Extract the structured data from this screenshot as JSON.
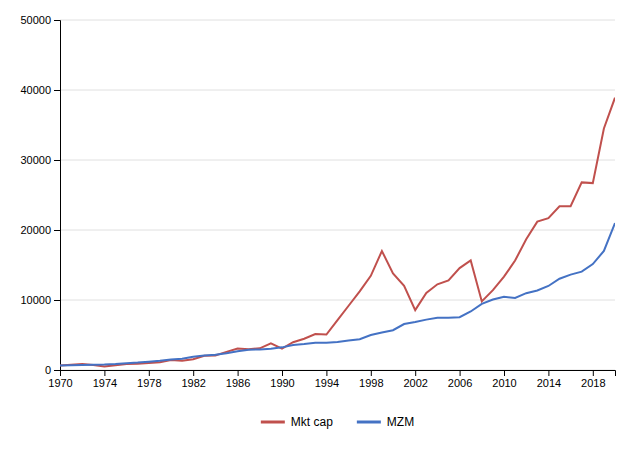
{
  "chart_data": {
    "type": "line",
    "x": [
      1970,
      1971,
      1972,
      1973,
      1974,
      1975,
      1976,
      1977,
      1978,
      1979,
      1980,
      1981,
      1982,
      1983,
      1984,
      1985,
      1986,
      1987,
      1988,
      1989,
      1990,
      1991,
      1992,
      1993,
      1994,
      1995,
      1996,
      1997,
      1998,
      1999,
      2000,
      2001,
      2002,
      2003,
      2004,
      2005,
      2006,
      2007,
      2008,
      2009,
      2010,
      2011,
      2012,
      2013,
      2014,
      2015,
      2016,
      2017,
      2018,
      2019,
      2020
    ],
    "series": [
      {
        "name": "Mkt cap",
        "color": "#c0504d",
        "values": [
          636,
          741,
          871,
          722,
          511,
          685,
          858,
          906,
          1001,
          1122,
          1436,
          1331,
          1546,
          2024,
          2085,
          2586,
          3073,
          2977,
          3098,
          3815,
          3059,
          3973,
          4468,
          5136,
          5058,
          7138,
          9178,
          11234,
          13451,
          17001,
          13810,
          12020,
          8550,
          11018,
          12244,
          12803,
          14562,
          15650,
          9800,
          11400,
          13330,
          15640,
          18668,
          21200,
          21700,
          23400,
          23400,
          26800,
          26700,
          34500,
          38900
        ]
      },
      {
        "name": "MZM",
        "color": "#4472c4",
        "values": [
          626,
          680,
          726,
          762,
          770,
          849,
          980,
          1061,
          1190,
          1319,
          1503,
          1619,
          1879,
          2081,
          2176,
          2384,
          2691,
          2892,
          2940,
          3037,
          3234,
          3555,
          3701,
          3889,
          3905,
          3989,
          4218,
          4395,
          5007,
          5356,
          5682,
          6565,
          6863,
          7198,
          7461,
          7475,
          7536,
          8360,
          9444,
          10064,
          10454,
          10284,
          10971,
          11368,
          12003,
          13038,
          13626,
          14046,
          15127,
          17008,
          21000
        ]
      }
    ],
    "xlim": [
      1970,
      2020
    ],
    "xticks": [
      1970,
      1974,
      1978,
      1982,
      1986,
      1990,
      1994,
      1998,
      2002,
      2006,
      2010,
      2014,
      2018
    ],
    "ylim": [
      0,
      50000
    ],
    "yticks": [
      0,
      10000,
      20000,
      30000,
      40000,
      50000
    ],
    "grid": true,
    "legend": "bottom"
  }
}
